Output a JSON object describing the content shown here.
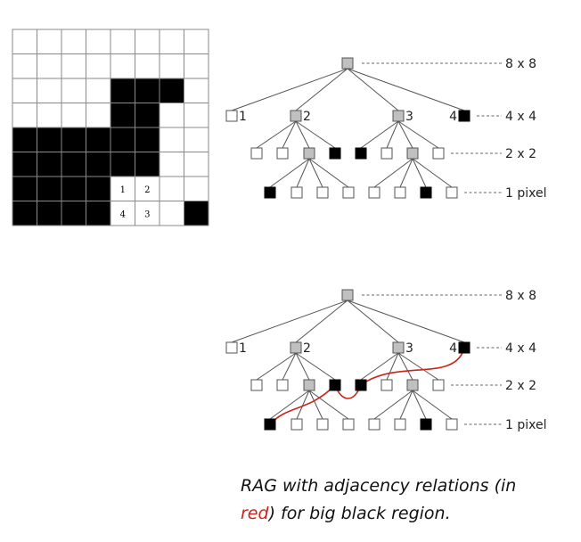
{
  "grid": {
    "rows": [
      [
        0,
        0,
        0,
        0,
        0,
        0,
        0,
        0
      ],
      [
        0,
        0,
        0,
        0,
        0,
        0,
        0,
        0
      ],
      [
        0,
        0,
        0,
        0,
        1,
        1,
        1,
        0
      ],
      [
        0,
        0,
        0,
        0,
        1,
        1,
        0,
        0
      ],
      [
        1,
        1,
        1,
        1,
        1,
        1,
        0,
        0
      ],
      [
        1,
        1,
        1,
        1,
        1,
        1,
        0,
        0
      ],
      [
        1,
        1,
        1,
        1,
        0,
        0,
        0,
        0
      ],
      [
        1,
        1,
        1,
        1,
        0,
        0,
        0,
        1
      ]
    ],
    "cell_labels": [
      {
        "row": 6,
        "col": 4,
        "text": "1"
      },
      {
        "row": 6,
        "col": 5,
        "text": "2"
      },
      {
        "row": 7,
        "col": 4,
        "text": "4"
      },
      {
        "row": 7,
        "col": 5,
        "text": "3"
      }
    ]
  },
  "tree": {
    "node_colors": {
      "white": "#ffffff",
      "gray": "#c0c0c0",
      "black": "#000000"
    },
    "level_labels": [
      "8 x 8",
      "4 x 4",
      "2 x 2",
      "1 pixel"
    ],
    "root": "gray",
    "level1": [
      {
        "color": "white",
        "label": "1"
      },
      {
        "color": "gray",
        "label": "2"
      },
      {
        "color": "gray",
        "label": "3"
      },
      {
        "color": "black",
        "label": "4"
      }
    ],
    "level2": [
      "white",
      "white",
      "gray",
      "black",
      "black",
      "white",
      "gray",
      "white"
    ],
    "level3": [
      "black",
      "white",
      "white",
      "white",
      "white",
      "white",
      "black",
      "white"
    ]
  },
  "rag_color": "#c8251b",
  "caption": {
    "before": "RAG with adjacency relations (in ",
    "highlight": "red",
    "after": ") for big black region."
  }
}
